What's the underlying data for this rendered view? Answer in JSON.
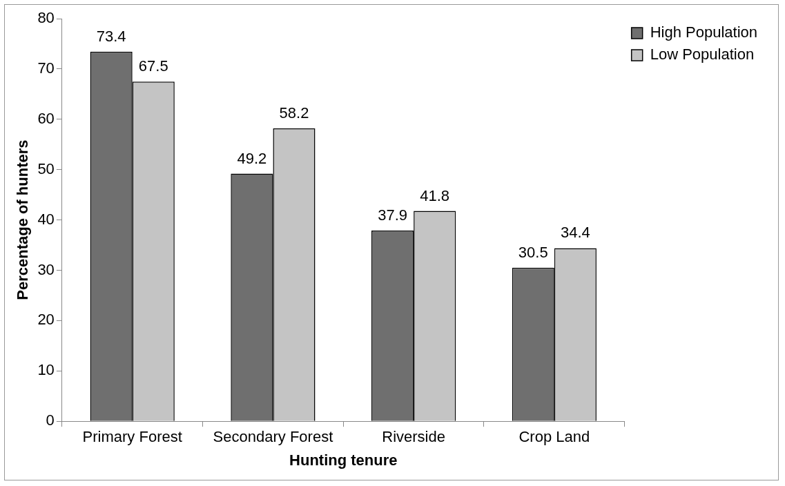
{
  "chart_data": {
    "type": "bar",
    "xlabel": "Hunting tenure",
    "ylabel": "Percentage of hunters",
    "categories": [
      "Primary Forest",
      "Secondary Forest",
      "Riverside",
      "Crop Land"
    ],
    "series": [
      {
        "name": "High Population",
        "color": "#6f6f6f",
        "values": [
          73.4,
          49.2,
          37.9,
          30.5
        ]
      },
      {
        "name": "Low Population",
        "color": "#c4c4c4",
        "values": [
          67.5,
          58.2,
          41.8,
          34.4
        ]
      }
    ],
    "ylim": [
      0,
      80
    ],
    "yticks": [
      0,
      10,
      20,
      30,
      40,
      50,
      60,
      70,
      80
    ],
    "grid": false,
    "legend": "right",
    "data_labels": true
  }
}
